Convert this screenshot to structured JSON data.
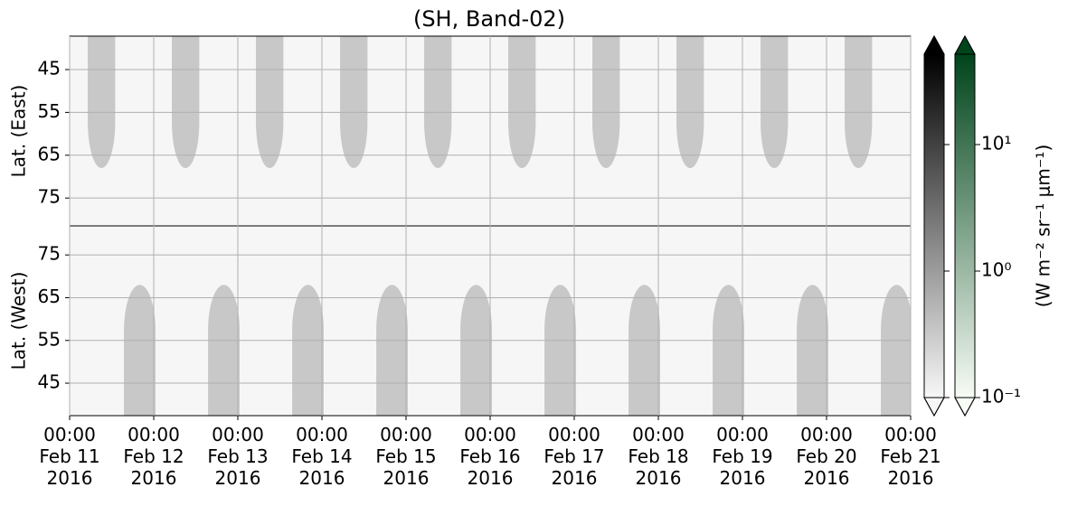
{
  "chart_data": {
    "type": "heatmap",
    "title": "(SH, Band-02)",
    "xlim": [
      "2016-02-11 00:00",
      "2016-02-21 00:00"
    ],
    "xticks": [
      {
        "value": "2016-02-11 00:00",
        "label": "00:00\nFeb 11\n2016"
      },
      {
        "value": "2016-02-12 00:00",
        "label": "00:00\nFeb 12\n2016"
      },
      {
        "value": "2016-02-13 00:00",
        "label": "00:00\nFeb 13\n2016"
      },
      {
        "value": "2016-02-14 00:00",
        "label": "00:00\nFeb 14\n2016"
      },
      {
        "value": "2016-02-15 00:00",
        "label": "00:00\nFeb 15\n2016"
      },
      {
        "value": "2016-02-16 00:00",
        "label": "00:00\nFeb 16\n2016"
      },
      {
        "value": "2016-02-17 00:00",
        "label": "00:00\nFeb 17\n2016"
      },
      {
        "value": "2016-02-18 00:00",
        "label": "00:00\nFeb 18\n2016"
      },
      {
        "value": "2016-02-19 00:00",
        "label": "00:00\nFeb 19\n2016"
      },
      {
        "value": "2016-02-20 00:00",
        "label": "00:00\nFeb 20\n2016"
      },
      {
        "value": "2016-02-21 00:00",
        "label": "00:00\nFeb 21\n2016"
      }
    ],
    "grid": true,
    "lobe_color": "#c8c8c8",
    "panels": [
      {
        "ylabel": "Lat. (East)",
        "ylim": [
          81.5,
          37.2
        ],
        "yticks": [
          45,
          55,
          65,
          75
        ],
        "lobes": [
          {
            "x": [
              "2016-02-11 05:10",
              "2016-02-11 13:00"
            ],
            "lat": 68
          },
          {
            "x": [
              "2016-02-12 05:10",
              "2016-02-12 13:00"
            ],
            "lat": 68
          },
          {
            "x": [
              "2016-02-13 05:10",
              "2016-02-13 13:00"
            ],
            "lat": 68
          },
          {
            "x": [
              "2016-02-14 05:10",
              "2016-02-14 13:00"
            ],
            "lat": 68
          },
          {
            "x": [
              "2016-02-15 05:10",
              "2016-02-15 13:00"
            ],
            "lat": 68
          },
          {
            "x": [
              "2016-02-16 05:10",
              "2016-02-16 13:00"
            ],
            "lat": 68
          },
          {
            "x": [
              "2016-02-17 05:10",
              "2016-02-17 13:00"
            ],
            "lat": 68
          },
          {
            "x": [
              "2016-02-18 05:10",
              "2016-02-18 13:00"
            ],
            "lat": 68
          },
          {
            "x": [
              "2016-02-19 05:10",
              "2016-02-19 13:00"
            ],
            "lat": 68
          },
          {
            "x": [
              "2016-02-20 05:10",
              "2016-02-20 13:00"
            ],
            "lat": 68
          }
        ]
      },
      {
        "ylabel": "Lat. (West)",
        "ylim": [
          37.4,
          81.8
        ],
        "yticks": [
          75,
          65,
          55,
          45
        ],
        "lobes": [
          {
            "x": [
              "2016-02-11 15:30",
              "2016-02-12 00:30"
            ],
            "lat": 68
          },
          {
            "x": [
              "2016-02-12 15:30",
              "2016-02-13 00:30"
            ],
            "lat": 68
          },
          {
            "x": [
              "2016-02-13 15:30",
              "2016-02-14 00:30"
            ],
            "lat": 68
          },
          {
            "x": [
              "2016-02-14 15:30",
              "2016-02-15 00:30"
            ],
            "lat": 68
          },
          {
            "x": [
              "2016-02-15 15:30",
              "2016-02-16 00:30"
            ],
            "lat": 68
          },
          {
            "x": [
              "2016-02-16 15:30",
              "2016-02-17 00:30"
            ],
            "lat": 68
          },
          {
            "x": [
              "2016-02-17 15:30",
              "2016-02-18 00:30"
            ],
            "lat": 68
          },
          {
            "x": [
              "2016-02-18 15:30",
              "2016-02-19 00:30"
            ],
            "lat": 68
          },
          {
            "x": [
              "2016-02-19 15:30",
              "2016-02-20 00:30"
            ],
            "lat": 68
          },
          {
            "x": [
              "2016-02-20 15:30",
              "2016-02-21 00:30"
            ],
            "lat": 68
          }
        ]
      }
    ],
    "colorbars": [
      {
        "colors": [
          "#f7f7f7",
          "#000000"
        ]
      },
      {
        "colors": [
          "#f7fcf5",
          "#00441b"
        ]
      }
    ],
    "colorbar_label": "(W m⁻² sr⁻¹ μm⁻¹)",
    "clim": [
      0.1,
      51.8
    ],
    "log_scale": true,
    "cticks": [
      {
        "value": 0.1,
        "label": "10⁻¹"
      },
      {
        "value": 1,
        "label": "10⁰"
      },
      {
        "value": 10,
        "label": "10¹"
      }
    ]
  }
}
